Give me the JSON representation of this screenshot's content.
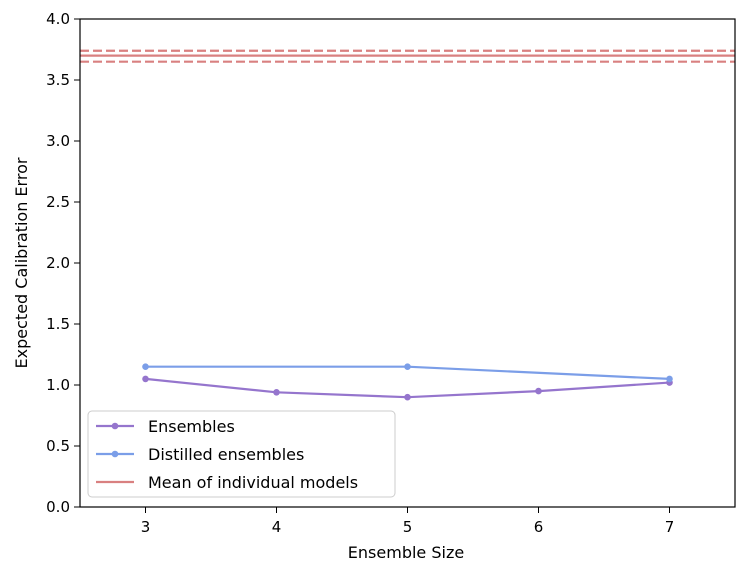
{
  "chart_data": {
    "type": "line",
    "xlabel": "Ensemble Size",
    "ylabel": "Expected Calibration Error",
    "xlim": [
      2.5,
      7.5
    ],
    "ylim": [
      0.0,
      4.0
    ],
    "xticks": [
      3,
      4,
      5,
      6,
      7
    ],
    "yticks": [
      0.0,
      0.5,
      1.0,
      1.5,
      2.0,
      2.5,
      3.0,
      3.5,
      4.0
    ],
    "grid": false,
    "legend_position": "lower-left",
    "series": [
      {
        "name": "Ensembles",
        "color": "#9575cd",
        "marker": "circle",
        "x": [
          3,
          4,
          5,
          6,
          7
        ],
        "y": [
          1.05,
          0.94,
          0.9,
          0.95,
          1.02
        ]
      },
      {
        "name": "Distilled ensembles",
        "color": "#7b9ee8",
        "marker": "circle",
        "x": [
          3,
          5,
          7
        ],
        "y": [
          1.15,
          1.15,
          1.05
        ]
      }
    ],
    "reference": {
      "name": "Mean of individual models",
      "color": "#d98080",
      "mean": 3.7,
      "band": [
        3.65,
        3.74
      ]
    }
  }
}
